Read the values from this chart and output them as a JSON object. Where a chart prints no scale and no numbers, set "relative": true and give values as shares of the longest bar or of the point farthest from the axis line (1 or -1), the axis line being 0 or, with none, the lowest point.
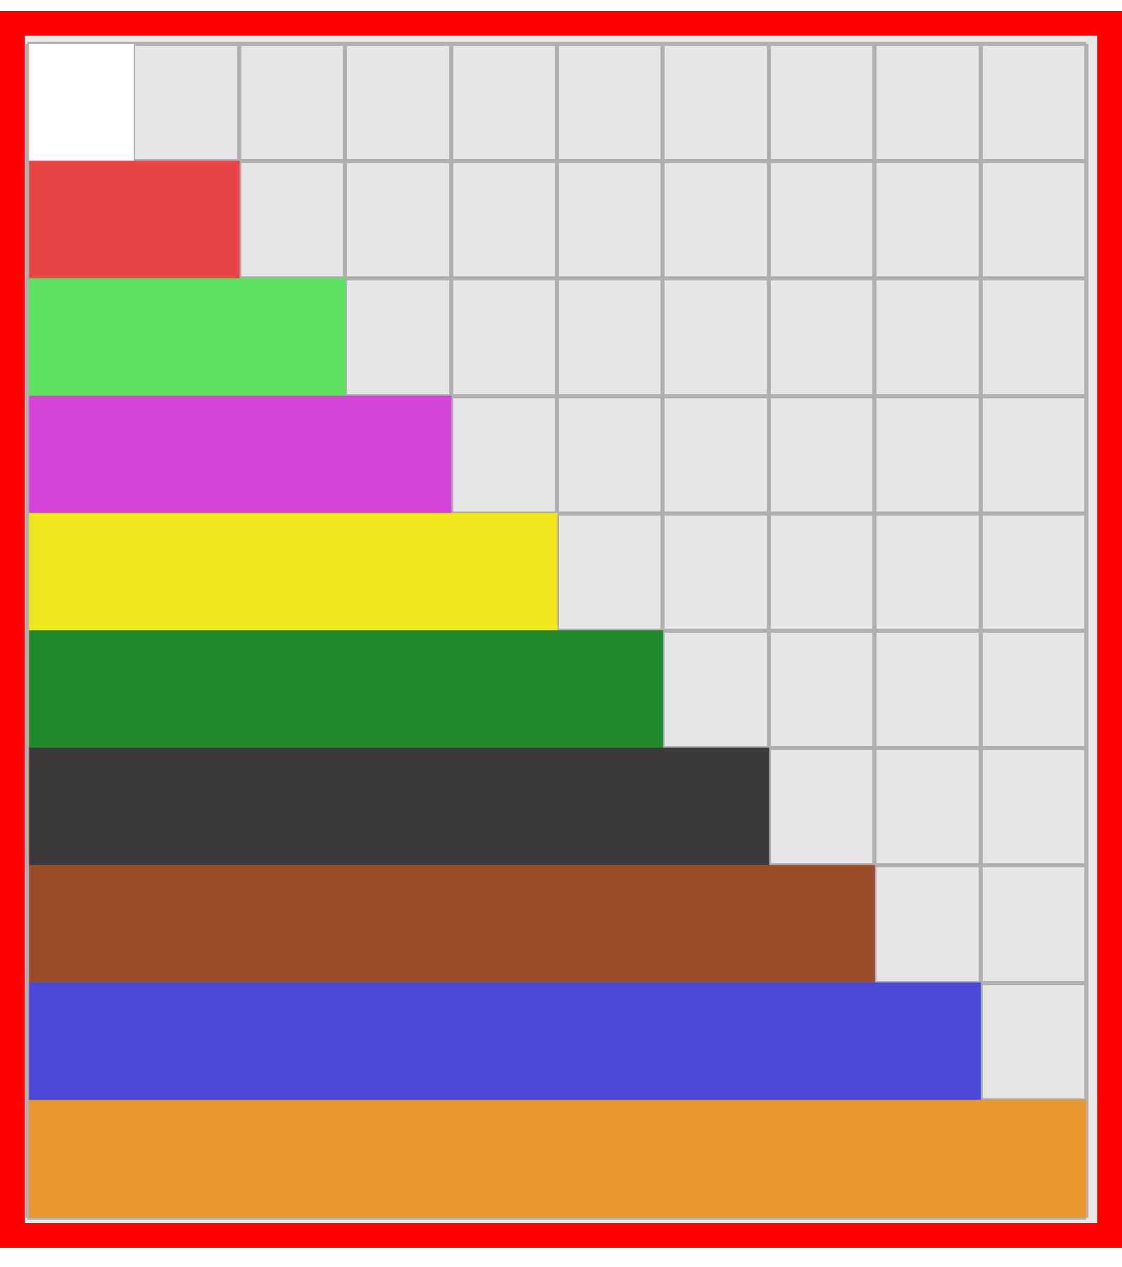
{
  "chart_data": {
    "type": "bar",
    "orientation": "horizontal",
    "relative": true,
    "grid": true,
    "legend": false,
    "categories": [
      null,
      null,
      null,
      null,
      null,
      null,
      null,
      null,
      null,
      null
    ],
    "values": [
      0.1,
      0.2,
      0.3,
      0.4,
      0.5,
      0.6,
      0.7,
      0.8,
      0.9,
      1
    ],
    "colors": [
      "#ffffff",
      "#e84545",
      "#5ee060",
      "#d644d8",
      "#f0e81c",
      "#238a2e",
      "#3a3a3a",
      "#9a4e2a",
      "#4a48d8",
      "#e8982e"
    ]
  }
}
